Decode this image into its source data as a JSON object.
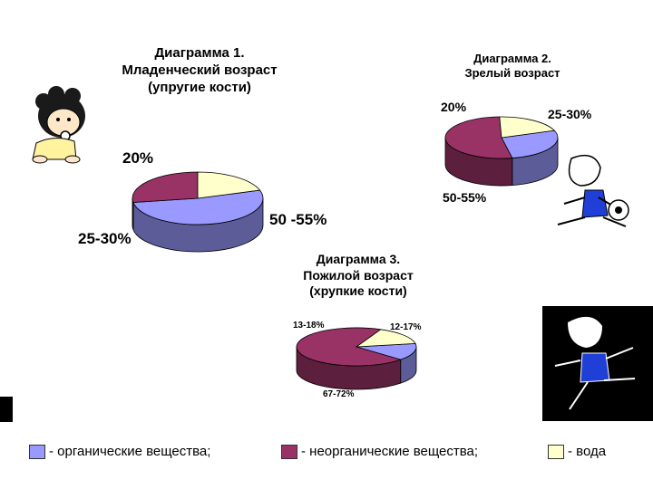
{
  "colors": {
    "organic": "#9999ff",
    "inorganic": "#993366",
    "water": "#ffffcc",
    "side_dark": "#5c1f3a"
  },
  "legend": [
    {
      "key": "organic",
      "label": "- органические вещества;"
    },
    {
      "key": "inorganic",
      "label": "- неорганические вещества;"
    },
    {
      "key": "water",
      "label": "- вода"
    }
  ],
  "chart_data": [
    {
      "type": "pie",
      "title": "Диаграмма 1.\nМладенческий возраст\n(упругие  кости)",
      "labels": [
        "50 -55%",
        "25-30%",
        "20%"
      ],
      "series": [
        {
          "category": "organic",
          "value": 52.5
        },
        {
          "category": "inorganic",
          "value": 27.5
        },
        {
          "category": "water",
          "value": 20
        }
      ]
    },
    {
      "type": "pie",
      "title": "Диаграмма 2.\nЗрелый возраст",
      "labels": [
        "25-30%",
        "50-55%",
        "20%"
      ],
      "series": [
        {
          "category": "organic",
          "value": 27.5
        },
        {
          "category": "inorganic",
          "value": 52.5
        },
        {
          "category": "water",
          "value": 20
        }
      ]
    },
    {
      "type": "pie",
      "title": "Диаграмма 3.\nПожилой возраст\n(хрупкие  кости)",
      "labels": [
        "12-17%",
        "67-72%",
        "13-18%"
      ],
      "series": [
        {
          "category": "organic",
          "value": 14.5
        },
        {
          "category": "inorganic",
          "value": 69.5
        },
        {
          "category": "water",
          "value": 15.5
        }
      ]
    }
  ]
}
